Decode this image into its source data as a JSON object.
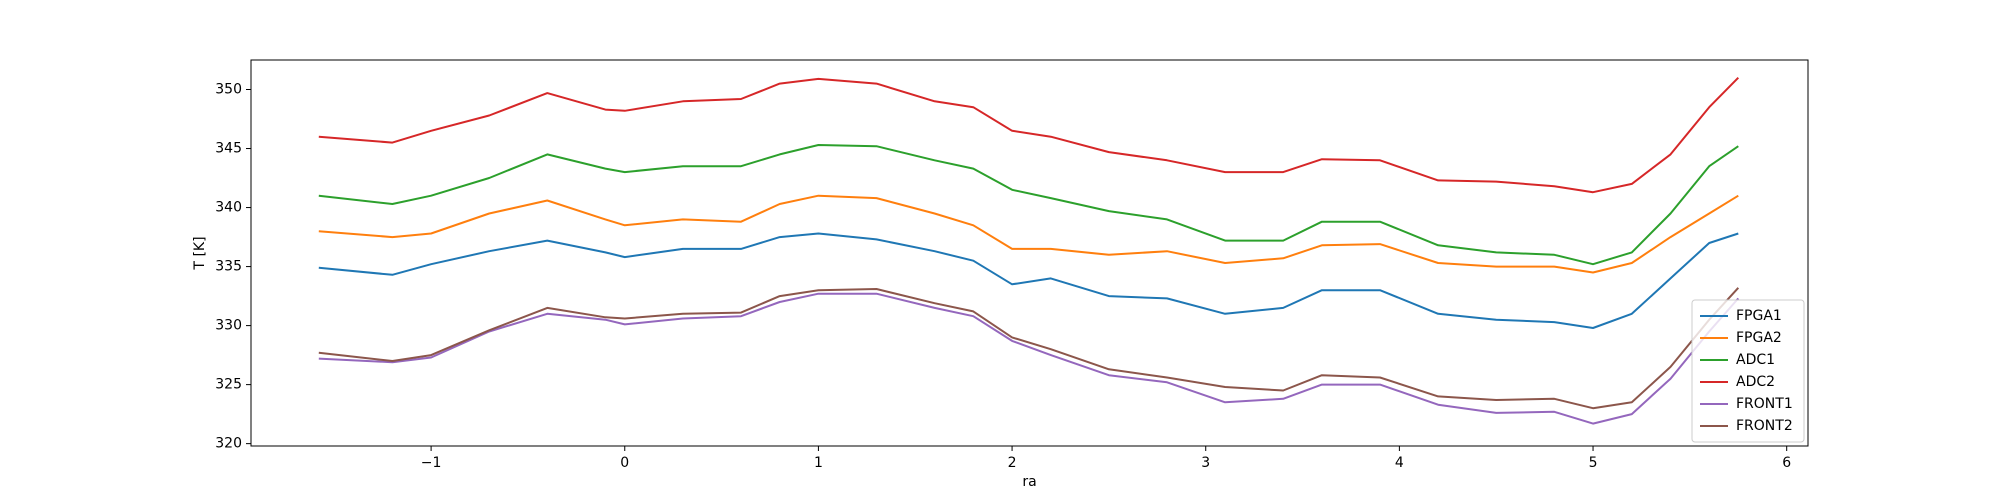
{
  "chart_data": {
    "type": "line",
    "xlabel": "ra",
    "ylabel": "T [K]",
    "x": [
      -1.58,
      -1.2,
      -1.0,
      -0.7,
      -0.4,
      -0.1,
      0.0,
      0.3,
      0.6,
      0.8,
      1.0,
      1.3,
      1.6,
      1.8,
      2.0,
      2.2,
      2.5,
      2.8,
      3.1,
      3.4,
      3.6,
      3.9,
      4.2,
      4.5,
      4.8,
      5.0,
      5.2,
      5.4,
      5.6,
      5.75
    ],
    "series": [
      {
        "name": "FPGA1",
        "color": "#1f77b4",
        "values": [
          334.9,
          334.3,
          335.2,
          336.3,
          337.2,
          336.2,
          335.8,
          336.5,
          336.5,
          337.5,
          337.8,
          337.3,
          336.3,
          335.5,
          333.5,
          334,
          332.5,
          332.3,
          331,
          331.5,
          333,
          333,
          331,
          330.5,
          330.3,
          329.8,
          331,
          334,
          337,
          337.8
        ]
      },
      {
        "name": "FPGA2",
        "color": "#ff7f0e",
        "values": [
          338,
          337.5,
          337.8,
          339.5,
          340.6,
          339,
          338.5,
          339,
          338.8,
          340.3,
          341,
          340.8,
          339.5,
          338.5,
          336.5,
          336.5,
          336,
          336.3,
          335.3,
          335.7,
          336.8,
          336.9,
          335.3,
          335,
          335,
          334.5,
          335.3,
          337.5,
          339.5,
          341
        ]
      },
      {
        "name": "ADC1",
        "color": "#2ca02c",
        "values": [
          341,
          340.3,
          341,
          342.5,
          344.5,
          343.3,
          343,
          343.5,
          343.5,
          344.5,
          345.3,
          345.2,
          344,
          343.3,
          341.5,
          340.8,
          339.7,
          339,
          337.2,
          337.2,
          338.8,
          338.8,
          336.8,
          336.2,
          336,
          335.2,
          336.2,
          339.5,
          343.5,
          345.2
        ]
      },
      {
        "name": "ADC2",
        "color": "#d62728",
        "values": [
          346,
          345.5,
          346.5,
          347.8,
          349.7,
          348.3,
          348.2,
          349,
          349.2,
          350.5,
          350.9,
          350.5,
          349,
          348.5,
          346.5,
          346,
          344.7,
          344,
          343,
          343,
          344.1,
          344,
          342.3,
          342.2,
          341.8,
          341.3,
          342,
          344.5,
          348.5,
          351
        ]
      },
      {
        "name": "FRONT1",
        "color": "#9467bd",
        "values": [
          327.2,
          326.9,
          327.3,
          329.5,
          331,
          330.5,
          330.1,
          330.6,
          330.8,
          332,
          332.7,
          332.7,
          331.5,
          330.8,
          328.7,
          327.5,
          325.8,
          325.2,
          323.5,
          323.8,
          325,
          325,
          323.3,
          322.6,
          322.7,
          321.7,
          322.5,
          325.5,
          329.5,
          332.3
        ]
      },
      {
        "name": "FRONT2",
        "color": "#8c564b",
        "values": [
          327.7,
          327,
          327.5,
          329.6,
          331.5,
          330.7,
          330.6,
          331,
          331.1,
          332.5,
          333,
          333.1,
          331.9,
          331.2,
          329,
          328,
          326.3,
          325.6,
          324.8,
          324.5,
          325.8,
          325.6,
          324,
          323.7,
          323.8,
          323,
          323.5,
          326.5,
          330.5,
          333.2
        ]
      }
    ],
    "xlim": [
      -1.93,
      6.11
    ],
    "ylim": [
      319.8,
      352.5
    ],
    "xticks": [
      {
        "value": -1,
        "label": "−1"
      },
      0,
      1,
      2,
      3,
      4,
      5,
      6
    ],
    "yticks": [
      320,
      325,
      330,
      335,
      340,
      345,
      350
    ],
    "legend": "lower right"
  }
}
